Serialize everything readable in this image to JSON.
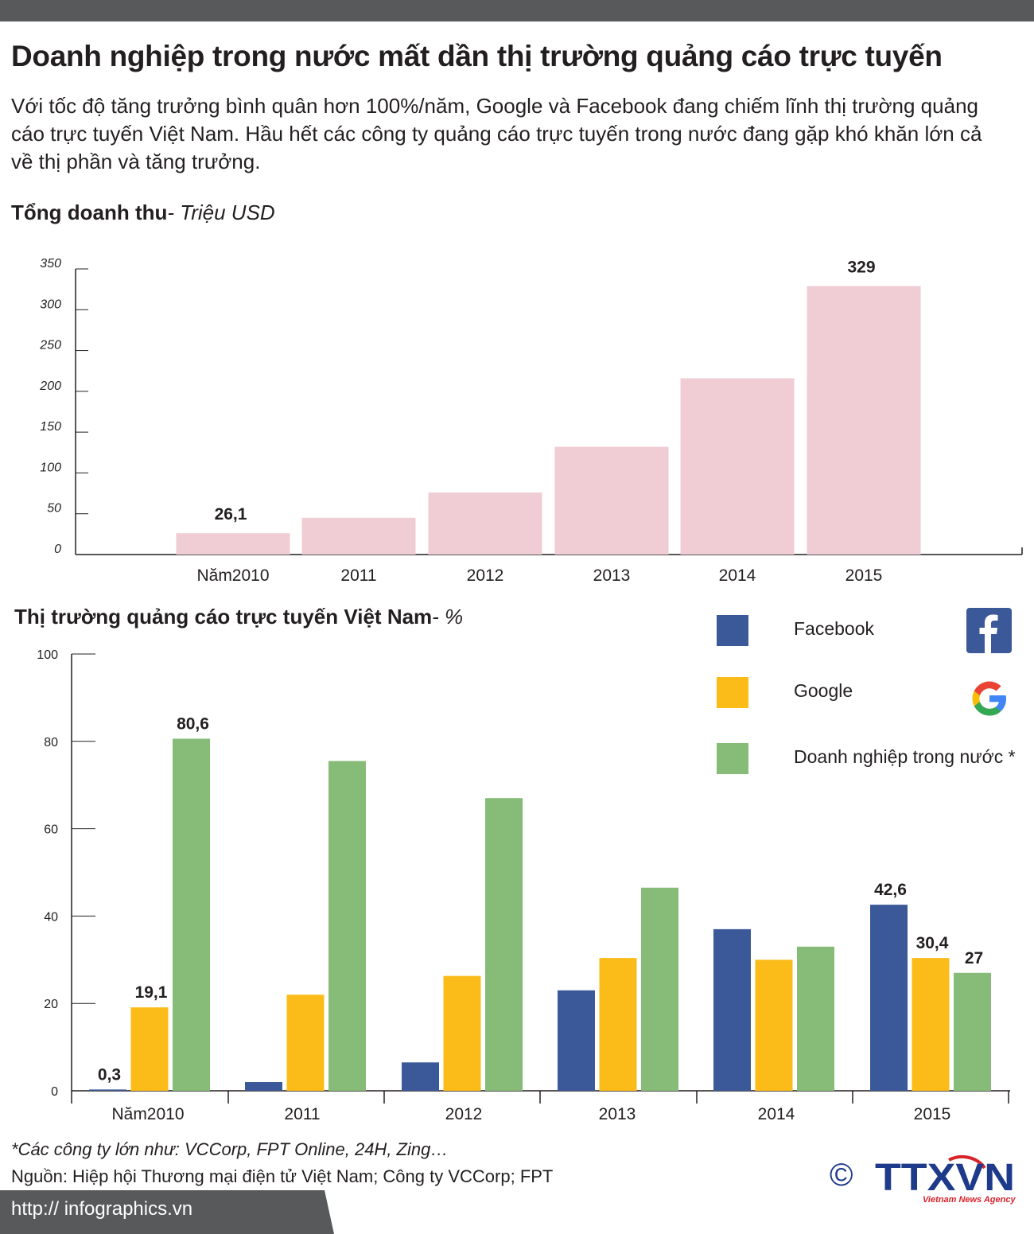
{
  "header": {
    "title": "Doanh nghiệp trong nước mất dần thị trường quảng cáo trực tuyến",
    "intro": "Với tốc độ tăng trưởng bình quân hơn 100%/năm, Google và Facebook đang chiếm lĩnh thị trường quảng cáo trực tuyến Việt Nam. Hầu hết các công ty quảng cáo trực tuyến trong nước đang gặp khó khăn lớn cả về thị phần và tăng trưởng."
  },
  "revenue_section": {
    "title": "Tổng doanh thu",
    "unit": "- Triệu USD"
  },
  "market_section": {
    "title": "Thị trường quảng cáo trực tuyến Việt Nam",
    "unit": "- %"
  },
  "legend": [
    {
      "label": "Facebook",
      "color": "#3b5998"
    },
    {
      "label": "Google",
      "color": "#fbbc1a"
    },
    {
      "label": "Doanh nghiệp trong nước *",
      "color": "#86bc77"
    }
  ],
  "colors": {
    "revenue_bar": "#f0cdd4",
    "facebook": "#3b5998",
    "google": "#fbbc1a",
    "domestic": "#86bc77",
    "bar_label": "#231f20"
  },
  "chart_data": [
    {
      "type": "bar",
      "title": "Tổng doanh thu- Triệu USD",
      "categories": [
        "Năm2010",
        "2011",
        "2012",
        "2013",
        "2014",
        "2015"
      ],
      "values": [
        26.1,
        45,
        76,
        132,
        216,
        329
      ],
      "value_labels": [
        "26,1",
        "",
        "",
        "",
        "",
        "329"
      ],
      "yticks": [
        "0",
        "50",
        "100",
        "150",
        "200",
        "250",
        "300",
        "350"
      ],
      "ylim": [
        0,
        350
      ],
      "xlabel": "",
      "ylabel": ""
    },
    {
      "type": "bar",
      "title": "Thị trường quảng cáo trực tuyến Việt Nam- %",
      "categories": [
        "Năm2010",
        "2011",
        "2012",
        "2013",
        "2014",
        "2015"
      ],
      "series": [
        {
          "name": "Facebook",
          "values": [
            0.3,
            2,
            6.5,
            23,
            37,
            42.6
          ],
          "labels": [
            "0,3",
            "",
            "",
            "",
            "",
            "42,6"
          ]
        },
        {
          "name": "Google",
          "values": [
            19.1,
            22,
            26.3,
            30.4,
            30,
            30.4
          ],
          "labels": [
            "19,1",
            "",
            "",
            "",
            "",
            "30,4"
          ]
        },
        {
          "name": "Doanh nghiệp trong nước *",
          "values": [
            80.6,
            75.5,
            67,
            46.5,
            33,
            27
          ],
          "labels": [
            "80,6",
            "",
            "",
            "",
            "",
            "27"
          ]
        }
      ],
      "yticks": [
        "0",
        "20",
        "40",
        "60",
        "80",
        "100"
      ],
      "ylim": [
        0,
        100
      ],
      "legend": "top-right",
      "xlabel": "",
      "ylabel": ""
    }
  ],
  "footer": {
    "footnote": "*Các công ty lớn như: VCCorp, FPT Online, 24H, Zing…",
    "source": "Nguồn: Hiệp hội Thương mại điện tử Việt Nam; Công ty VCCorp; FPT",
    "url": "http:// infographics.vn",
    "copyright": "©",
    "agency": "TTXVN",
    "agency_sub": "Vietnam News Agency"
  }
}
